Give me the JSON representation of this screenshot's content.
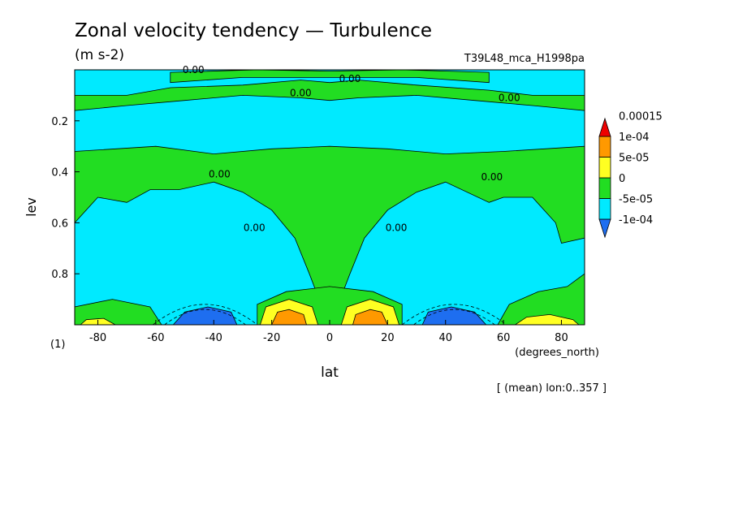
{
  "chart_data": {
    "type": "heatmap",
    "title": "Zonal velocity tendency — Turbulence",
    "units": "(m s-2)",
    "run_id": "T39L48_mca_H1998pa",
    "xlabel": "lat",
    "x_units": "(degrees_north)",
    "ylabel": "lev",
    "y_units": "(1)",
    "footer": "[ (mean) lon:0..357 ]",
    "xlim": [
      -88,
      88
    ],
    "ylim": [
      0.0,
      1.0
    ],
    "y_reversed": true,
    "x_ticks": [
      -80,
      -60,
      -40,
      -20,
      0,
      20,
      40,
      60,
      80
    ],
    "x_tick_labels": [
      "-80",
      "-60",
      "-40",
      "-20",
      "0",
      "20",
      "40",
      "60",
      "80"
    ],
    "y_ticks": [
      0.2,
      0.4,
      0.6,
      0.8
    ],
    "y_tick_labels": [
      "0.2",
      "0.4",
      "0.6",
      "0.8"
    ],
    "contour_labels": [
      {
        "text": "0.00",
        "lat": -47,
        "lev": 0.0
      },
      {
        "text": "0.00",
        "lat": 7,
        "lev": 0.035
      },
      {
        "text": "0.00",
        "lat": -10,
        "lev": 0.09
      },
      {
        "text": "0.00",
        "lat": 62,
        "lev": 0.11
      },
      {
        "text": "0.00",
        "lat": -38,
        "lev": 0.41
      },
      {
        "text": "0.00",
        "lat": 56,
        "lev": 0.42
      },
      {
        "text": "0.00",
        "lat": -26,
        "lev": 0.62
      },
      {
        "text": "0.00",
        "lat": 23,
        "lev": 0.62
      }
    ],
    "colorbar": {
      "colors": [
        "#1e6ef0",
        "#00eaff",
        "#22dd22",
        "#ffff22",
        "#ff9900",
        "#ee0000"
      ],
      "labels": [
        "-1e-04",
        "-5e-05",
        "0",
        "5e-05",
        "1e-04",
        "0.00015"
      ]
    },
    "colors": {
      "negative_weak": "#00eaff",
      "negative_strong": "#1e6ef0",
      "positive_weak": "#22dd22",
      "positive_mid": "#ffff22",
      "positive_strong": "#ff9900"
    },
    "regions": [
      {
        "name": "upper_green_band",
        "level": "0..5e-05",
        "color": "#22dd22",
        "outline": [
          [
            -88,
            0.1
          ],
          [
            -70,
            0.1
          ],
          [
            -55,
            0.07
          ],
          [
            -30,
            0.06
          ],
          [
            -10,
            0.04
          ],
          [
            0,
            0.05
          ],
          [
            10,
            0.04
          ],
          [
            30,
            0.06
          ],
          [
            55,
            0.08
          ],
          [
            70,
            0.1
          ],
          [
            88,
            0.1
          ],
          [
            88,
            0.16
          ],
          [
            70,
            0.14
          ],
          [
            50,
            0.12
          ],
          [
            30,
            0.1
          ],
          [
            10,
            0.11
          ],
          [
            0,
            0.12
          ],
          [
            -10,
            0.11
          ],
          [
            -30,
            0.1
          ],
          [
            -50,
            0.12
          ],
          [
            -70,
            0.14
          ],
          [
            -88,
            0.16
          ]
        ]
      },
      {
        "name": "upper_green_cap",
        "level": "0..5e-05",
        "color": "#22dd22",
        "outline": [
          [
            -55,
            0.01
          ],
          [
            -25,
            0.0
          ],
          [
            0,
            0.005
          ],
          [
            25,
            0.0
          ],
          [
            55,
            0.01
          ],
          [
            55,
            0.05
          ],
          [
            30,
            0.03
          ],
          [
            0,
            0.03
          ],
          [
            -30,
            0.03
          ],
          [
            -55,
            0.05
          ]
        ]
      },
      {
        "name": "mid_green_body",
        "level": "0..5e-05",
        "color": "#22dd22",
        "outline": [
          [
            -88,
            0.32
          ],
          [
            -60,
            0.3
          ],
          [
            -40,
            0.33
          ],
          [
            -20,
            0.31
          ],
          [
            0,
            0.3
          ],
          [
            20,
            0.31
          ],
          [
            40,
            0.33
          ],
          [
            60,
            0.32
          ],
          [
            88,
            0.3
          ],
          [
            88,
            0.66
          ],
          [
            80,
            0.68
          ],
          [
            78,
            0.6
          ],
          [
            70,
            0.5
          ],
          [
            60,
            0.5
          ],
          [
            55,
            0.52
          ],
          [
            40,
            0.44
          ],
          [
            30,
            0.48
          ],
          [
            20,
            0.55
          ],
          [
            12,
            0.66
          ],
          [
            7,
            0.8
          ],
          [
            5,
            0.86
          ],
          [
            4,
            0.92
          ],
          [
            -4,
            0.92
          ],
          [
            -5,
            0.86
          ],
          [
            -7,
            0.8
          ],
          [
            -12,
            0.66
          ],
          [
            -20,
            0.55
          ],
          [
            -30,
            0.48
          ],
          [
            -40,
            0.44
          ],
          [
            -52,
            0.47
          ],
          [
            -62,
            0.47
          ],
          [
            -70,
            0.52
          ],
          [
            -80,
            0.5
          ],
          [
            -88,
            0.6
          ]
        ]
      },
      {
        "name": "equator_green_base",
        "level": "0..5e-05",
        "color": "#22dd22",
        "outline": [
          [
            -25,
            1.0
          ],
          [
            -25,
            0.92
          ],
          [
            -15,
            0.87
          ],
          [
            0,
            0.85
          ],
          [
            15,
            0.87
          ],
          [
            25,
            0.92
          ],
          [
            25,
            1.0
          ]
        ]
      },
      {
        "name": "sh_green_base",
        "level": "0..5e-05",
        "color": "#22dd22",
        "outline": [
          [
            -88,
            1.0
          ],
          [
            -88,
            0.93
          ],
          [
            -75,
            0.9
          ],
          [
            -62,
            0.93
          ],
          [
            -58,
            1.0
          ]
        ]
      },
      {
        "name": "nh_green_base",
        "level": "0..5e-05",
        "color": "#22dd22",
        "outline": [
          [
            58,
            1.0
          ],
          [
            62,
            0.92
          ],
          [
            72,
            0.87
          ],
          [
            82,
            0.85
          ],
          [
            88,
            0.8
          ],
          [
            88,
            1.0
          ]
        ]
      },
      {
        "name": "sh_yellow",
        "level": "5e-05..1e-04",
        "color": "#ffff22",
        "outline": [
          [
            -24,
            1.0
          ],
          [
            -22,
            0.93
          ],
          [
            -14,
            0.9
          ],
          [
            -6,
            0.93
          ],
          [
            -4,
            1.0
          ]
        ]
      },
      {
        "name": "nh_yellow",
        "level": "5e-05..1e-04",
        "color": "#ffff22",
        "outline": [
          [
            4,
            1.0
          ],
          [
            6,
            0.93
          ],
          [
            14,
            0.9
          ],
          [
            22,
            0.93
          ],
          [
            24,
            1.0
          ]
        ]
      },
      {
        "name": "sh_orange",
        "level": "1e-04..0.00015",
        "color": "#ff9900",
        "outline": [
          [
            -20,
            1.0
          ],
          [
            -18,
            0.95
          ],
          [
            -14,
            0.94
          ],
          [
            -9,
            0.96
          ],
          [
            -8,
            1.0
          ]
        ]
      },
      {
        "name": "nh_orange",
        "level": "1e-04..0.00015",
        "color": "#ff9900",
        "outline": [
          [
            8,
            1.0
          ],
          [
            9,
            0.96
          ],
          [
            14,
            0.94
          ],
          [
            18,
            0.95
          ],
          [
            20,
            1.0
          ]
        ]
      },
      {
        "name": "sh_blue",
        "level": "-1e-04..-5e-05",
        "color": "#1e6ef0",
        "outline": [
          [
            -54,
            1.0
          ],
          [
            -50,
            0.95
          ],
          [
            -42,
            0.93
          ],
          [
            -34,
            0.95
          ],
          [
            -32,
            1.0
          ]
        ]
      },
      {
        "name": "nh_blue",
        "level": "-1e-04..-5e-05",
        "color": "#1e6ef0",
        "outline": [
          [
            32,
            1.0
          ],
          [
            34,
            0.95
          ],
          [
            42,
            0.93
          ],
          [
            50,
            0.95
          ],
          [
            54,
            1.0
          ]
        ]
      },
      {
        "name": "far_sh_yellow",
        "level": "5e-05..1e-04",
        "color": "#ffff22",
        "outline": [
          [
            -86,
            1.0
          ],
          [
            -84,
            0.98
          ],
          [
            -78,
            0.975
          ],
          [
            -74,
            1.0
          ]
        ]
      },
      {
        "name": "far_nh_yellow",
        "level": "5e-05..1e-04",
        "color": "#ffff22",
        "outline": [
          [
            64,
            1.0
          ],
          [
            68,
            0.97
          ],
          [
            76,
            0.96
          ],
          [
            84,
            0.98
          ],
          [
            86,
            1.0
          ]
        ]
      }
    ]
  }
}
